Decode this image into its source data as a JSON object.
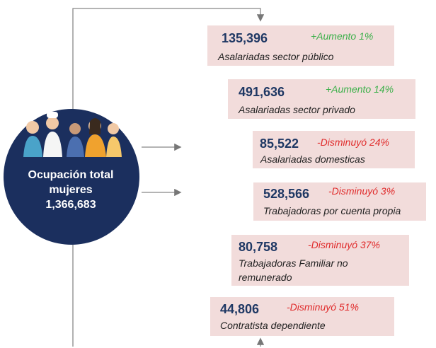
{
  "circle": {
    "title_lines": [
      "Ocupación total",
      "mujeres"
    ],
    "total": "1,366,683"
  },
  "items": [
    {
      "number": "135,396",
      "change": "+Aumento 1%",
      "label": "Asalariadas sector público"
    },
    {
      "number": "491,636",
      "change": "+Aumento 14%",
      "label": "Asalariadas sector privado"
    },
    {
      "number": "85,522",
      "change": "-Disminuyó 24%",
      "label": "Asalariadas domesticas"
    },
    {
      "number": "528,566",
      "change": "-Disminuyó 3%",
      "label": "Trabajadoras por cuenta propia"
    },
    {
      "number": "80,758",
      "change": "-Disminuyó 37%",
      "label": "Trabajadoras Familiar no remunerado"
    },
    {
      "number": "44,806",
      "change": "-Disminuyó 51%",
      "label": "Contratista dependiente"
    }
  ]
}
